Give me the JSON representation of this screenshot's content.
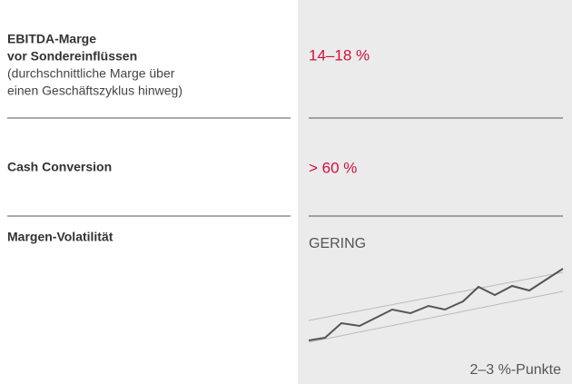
{
  "rows": [
    {
      "title": [
        "EBITDA-Marge",
        "vor Sondereinflüssen"
      ],
      "note": [
        "(durchschnittliche Marge über",
        "einen Geschäftszyklus hinweg)"
      ],
      "value": "14–18 %"
    },
    {
      "title": [
        "Cash Conversion"
      ],
      "value": "> 60 %"
    },
    {
      "title": [
        "Margen-Volatilität"
      ],
      "value": "GERING",
      "caption": "2–3 %-Punkte"
    }
  ]
}
